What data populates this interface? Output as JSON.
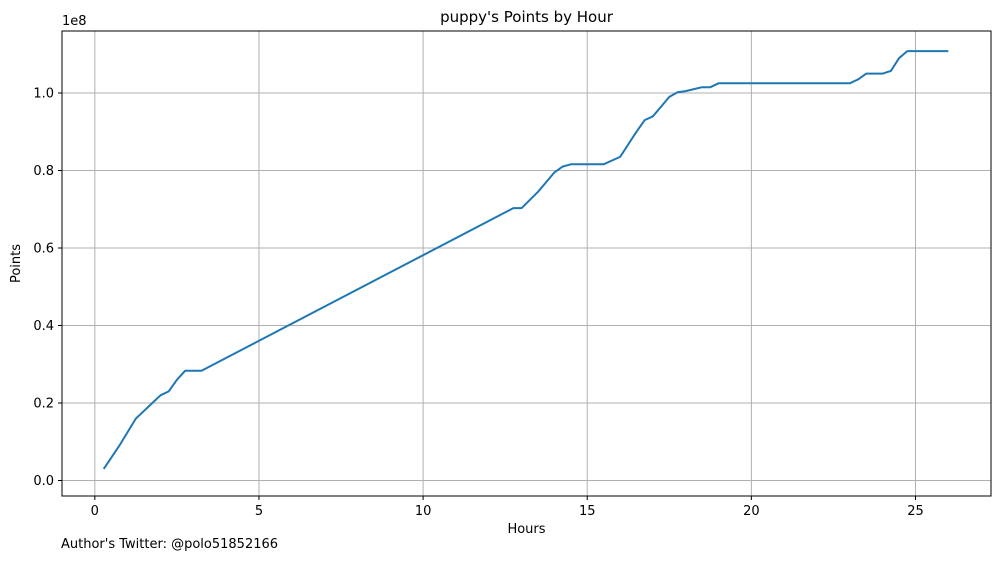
{
  "chart_data": {
    "type": "line",
    "title": "puppy's Points by Hour",
    "xlabel": "Hours",
    "ylabel": "Points",
    "y_offset_text": "1e8",
    "xlim": [
      -1.0,
      27.3
    ],
    "ylim": [
      -0.04,
      1.16
    ],
    "x_ticks": [
      0,
      5,
      10,
      15,
      20,
      25
    ],
    "x_tick_labels": [
      "0",
      "5",
      "10",
      "15",
      "20",
      "25"
    ],
    "y_ticks": [
      0.0,
      0.2,
      0.4,
      0.6,
      0.8,
      1.0
    ],
    "y_tick_labels": [
      "0.0",
      "0.2",
      "0.4",
      "0.6",
      "0.8",
      "1.0"
    ],
    "grid": true,
    "series": [
      {
        "color": "#1f77b4",
        "x": [
          0.27,
          0.75,
          1.25,
          1.5,
          1.75,
          2.0,
          2.25,
          2.5,
          2.75,
          3.0,
          3.25,
          12.75,
          13.0,
          13.5,
          13.75,
          14.0,
          14.25,
          14.5,
          15.0,
          15.25,
          15.5,
          16.0,
          16.5,
          16.75,
          17.0,
          17.25,
          17.5,
          17.75,
          18.0,
          18.25,
          18.5,
          18.75,
          19.0,
          19.5,
          20.0,
          21.0,
          22.0,
          22.5,
          23.0,
          23.25,
          23.5,
          24.0,
          24.25,
          24.5,
          24.75,
          25.0,
          26.0
        ],
        "y": [
          0.03,
          0.09,
          0.16,
          0.18,
          0.2,
          0.22,
          0.23,
          0.26,
          0.283,
          0.283,
          0.283,
          0.703,
          0.703,
          0.745,
          0.77,
          0.795,
          0.81,
          0.816,
          0.816,
          0.816,
          0.816,
          0.835,
          0.9,
          0.93,
          0.94,
          0.965,
          0.99,
          1.002,
          1.005,
          1.01,
          1.015,
          1.015,
          1.025,
          1.025,
          1.025,
          1.025,
          1.025,
          1.025,
          1.025,
          1.035,
          1.05,
          1.05,
          1.057,
          1.09,
          1.108,
          1.108,
          1.108
        ]
      }
    ]
  },
  "footnote": "Author's Twitter: @polo51852166"
}
